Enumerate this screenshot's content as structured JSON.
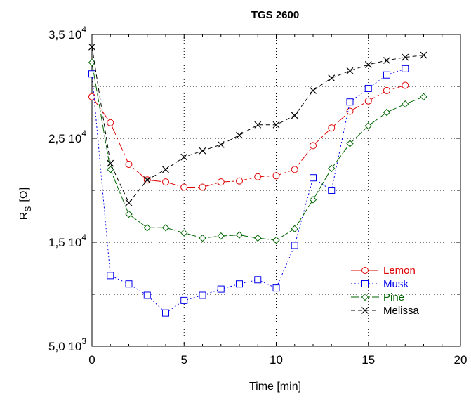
{
  "chart_data": {
    "type": "line",
    "title": "TGS 2600",
    "xlabel": "Time  [min]",
    "ylabel_main": "R",
    "ylabel_sub": "S",
    "ylabel_unit": "[Ω]",
    "xlim": [
      0,
      20
    ],
    "ylim": [
      5000,
      35000
    ],
    "grid": true,
    "grid_style": "dotted",
    "legend_position": "lower-right",
    "x_ticks": [
      {
        "value": 0,
        "label": "0"
      },
      {
        "value": 5,
        "label": "5"
      },
      {
        "value": 10,
        "label": "10"
      },
      {
        "value": 15,
        "label": "15"
      },
      {
        "value": 20,
        "label": "20"
      }
    ],
    "y_ticks": [
      {
        "value": 5000,
        "mantissa": "5,0 10",
        "exp": "3"
      },
      {
        "value": 15000,
        "mantissa": "1,5 10",
        "exp": "4"
      },
      {
        "value": 25000,
        "mantissa": "2,5 10",
        "exp": "4"
      },
      {
        "value": 35000,
        "mantissa": "3,5 10",
        "exp": "4"
      }
    ],
    "y_grid_values": [
      10000,
      15000,
      20000,
      25000,
      30000
    ],
    "x_grid_values": [
      5,
      10,
      15
    ],
    "series": [
      {
        "name": "Lemon",
        "color": "#dd0000",
        "marker": "circle",
        "dash": "14,4,3,4",
        "x": [
          0,
          1,
          2,
          3,
          4,
          5,
          6,
          7,
          8,
          9,
          10,
          11,
          12,
          13,
          14,
          15,
          16,
          17
        ],
        "y": [
          29000,
          26500,
          22500,
          21000,
          20800,
          20300,
          20300,
          20800,
          20900,
          21300,
          21400,
          22000,
          24300,
          26000,
          27600,
          28600,
          29600,
          30100
        ]
      },
      {
        "name": "Musk",
        "color": "#0000ee",
        "marker": "square",
        "dash": "2,3",
        "x": [
          0,
          1,
          2,
          3,
          4,
          5,
          6,
          7,
          8,
          9,
          10,
          11,
          12,
          13,
          14,
          15,
          16,
          17
        ],
        "y": [
          31200,
          11800,
          11000,
          9900,
          8200,
          9400,
          9900,
          10500,
          11000,
          11400,
          10600,
          14700,
          21200,
          20000,
          28500,
          29800,
          31100,
          31700
        ]
      },
      {
        "name": "Pine",
        "color": "#006600",
        "marker": "diamond",
        "dash": "12,3",
        "x": [
          0,
          1,
          2,
          3,
          4,
          5,
          6,
          7,
          8,
          9,
          10,
          11,
          12,
          13,
          14,
          15,
          16,
          17,
          18
        ],
        "y": [
          32300,
          22000,
          17700,
          16400,
          16400,
          15900,
          15400,
          15600,
          15700,
          15400,
          15200,
          16300,
          19100,
          22100,
          24500,
          26200,
          27500,
          28300,
          29000
        ]
      },
      {
        "name": "Melissa",
        "color": "#000000",
        "marker": "x",
        "dash": "6,4",
        "x": [
          0,
          1,
          2,
          3,
          4,
          5,
          6,
          7,
          8,
          9,
          10,
          11,
          12,
          13,
          14,
          15,
          16,
          17,
          18
        ],
        "y": [
          33800,
          22600,
          18800,
          21000,
          22000,
          23200,
          23800,
          24400,
          25300,
          26300,
          26300,
          27200,
          29600,
          30800,
          31500,
          32100,
          32500,
          32800,
          33000
        ]
      }
    ]
  }
}
